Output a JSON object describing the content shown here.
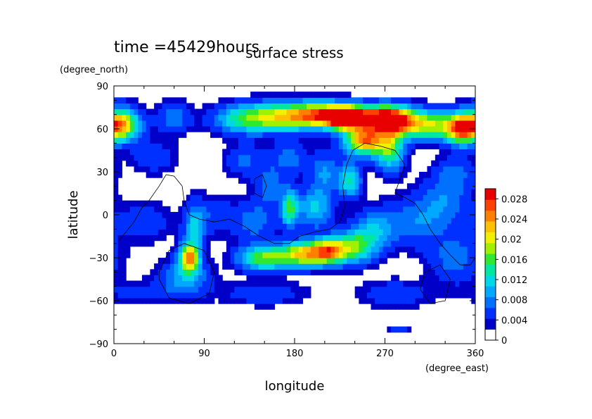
{
  "chart_data": {
    "type": "heatmap",
    "title": "surface stress",
    "time_label": "time =45429hours",
    "xlabel": "longitude",
    "ylabel": "latitude",
    "x_unit": "(degree_east)",
    "y_unit": "(degree_north)",
    "xlim": [
      0,
      360
    ],
    "ylim": [
      -90,
      90
    ],
    "x_ticks": [
      "0",
      "90",
      "180",
      "270",
      "360"
    ],
    "x_tick_values": [
      0,
      90,
      180,
      270,
      360
    ],
    "y_ticks": [
      "90",
      "60",
      "30",
      "0",
      "−30",
      "−60",
      "−90"
    ],
    "y_tick_values": [
      90,
      60,
      30,
      0,
      -30,
      -60,
      -90
    ],
    "colorbar": {
      "ticks": [
        "0.028",
        "0.024",
        "0.02",
        "0.016",
        "0.012",
        "0.008",
        "0.004",
        "0"
      ],
      "tick_values": [
        0.028,
        0.024,
        0.02,
        0.016,
        0.012,
        0.008,
        0.004,
        0
      ],
      "range": [
        0,
        0.03
      ],
      "colors": [
        "#ffffff",
        "#0000c8",
        "#0030ff",
        "#0070ff",
        "#00a8ff",
        "#00d8e8",
        "#00e8a0",
        "#30e830",
        "#a0f000",
        "#f0f000",
        "#ffc000",
        "#ff8000",
        "#ff4000",
        "#e80000"
      ]
    },
    "grid": false,
    "features": [
      {
        "lon": 5,
        "lat": 63,
        "value": 0.024,
        "sx": 14,
        "sy": 8
      },
      {
        "lon": 60,
        "lat": 68,
        "value": 0.006,
        "sx": 12,
        "sy": 8
      },
      {
        "lon": 130,
        "lat": 67,
        "value": 0.012,
        "sx": 22,
        "sy": 7
      },
      {
        "lon": 170,
        "lat": 69,
        "value": 0.016,
        "sx": 24,
        "sy": 7
      },
      {
        "lon": 210,
        "lat": 70,
        "value": 0.022,
        "sx": 22,
        "sy": 6
      },
      {
        "lon": 230,
        "lat": 68,
        "value": 0.026,
        "sx": 12,
        "sy": 5
      },
      {
        "lon": 260,
        "lat": 68,
        "value": 0.024,
        "sx": 20,
        "sy": 6
      },
      {
        "lon": 280,
        "lat": 65,
        "value": 0.022,
        "sx": 14,
        "sy": 7
      },
      {
        "lon": 315,
        "lat": 63,
        "value": 0.018,
        "sx": 18,
        "sy": 7
      },
      {
        "lon": 345,
        "lat": 60,
        "value": 0.02,
        "sx": 10,
        "sy": 7
      },
      {
        "lon": 250,
        "lat": 52,
        "value": 0.024,
        "sx": 14,
        "sy": 7
      },
      {
        "lon": 275,
        "lat": 45,
        "value": 0.014,
        "sx": 10,
        "sy": 10
      },
      {
        "lon": 235,
        "lat": 24,
        "value": 0.012,
        "sx": 8,
        "sy": 8
      },
      {
        "lon": 155,
        "lat": 20,
        "value": 0.006,
        "sx": 10,
        "sy": 10
      },
      {
        "lon": 210,
        "lat": 30,
        "value": 0.007,
        "sx": 10,
        "sy": 10
      },
      {
        "lon": 200,
        "lat": 5,
        "value": 0.01,
        "sx": 12,
        "sy": 10
      },
      {
        "lon": 175,
        "lat": 5,
        "value": 0.014,
        "sx": 6,
        "sy": 9
      },
      {
        "lon": 140,
        "lat": -5,
        "value": 0.006,
        "sx": 14,
        "sy": 10
      },
      {
        "lon": 100,
        "lat": 0,
        "value": 0.004,
        "sx": 16,
        "sy": 10
      },
      {
        "lon": 80,
        "lat": -10,
        "value": 0.009,
        "sx": 7,
        "sy": 12
      },
      {
        "lon": 75,
        "lat": -30,
        "value": 0.022,
        "sx": 7,
        "sy": 7
      },
      {
        "lon": 70,
        "lat": -45,
        "value": 0.008,
        "sx": 18,
        "sy": 9
      },
      {
        "lon": 150,
        "lat": -30,
        "value": 0.016,
        "sx": 18,
        "sy": 6
      },
      {
        "lon": 190,
        "lat": -27,
        "value": 0.02,
        "sx": 16,
        "sy": 6
      },
      {
        "lon": 215,
        "lat": -25,
        "value": 0.02,
        "sx": 12,
        "sy": 6
      },
      {
        "lon": 240,
        "lat": -22,
        "value": 0.014,
        "sx": 14,
        "sy": 8
      },
      {
        "lon": 260,
        "lat": -10,
        "value": 0.008,
        "sx": 14,
        "sy": 10
      },
      {
        "lon": 300,
        "lat": -5,
        "value": 0.006,
        "sx": 20,
        "sy": 12
      },
      {
        "lon": 330,
        "lat": 10,
        "value": 0.006,
        "sx": 18,
        "sy": 12
      },
      {
        "lon": 340,
        "lat": -30,
        "value": 0.006,
        "sx": 18,
        "sy": 12
      },
      {
        "lon": 30,
        "lat": -5,
        "value": 0.004,
        "sx": 20,
        "sy": 10
      },
      {
        "lon": 20,
        "lat": -55,
        "value": 0.003,
        "sx": 20,
        "sy": 6
      },
      {
        "lon": 150,
        "lat": -55,
        "value": 0.004,
        "sx": 30,
        "sy": 6
      },
      {
        "lon": 280,
        "lat": -55,
        "value": 0.004,
        "sx": 26,
        "sy": 7
      },
      {
        "lon": 40,
        "lat": 40,
        "value": 0.004,
        "sx": 16,
        "sy": 8
      },
      {
        "lon": 130,
        "lat": 38,
        "value": 0.005,
        "sx": 14,
        "sy": 8
      },
      {
        "lon": 175,
        "lat": 40,
        "value": 0.006,
        "sx": 12,
        "sy": 8
      },
      {
        "lon": 340,
        "lat": 30,
        "value": 0.005,
        "sx": 14,
        "sy": 8
      },
      {
        "lon": 285,
        "lat": -80,
        "value": 0.004,
        "sx": 8,
        "sy": 2
      }
    ],
    "coastlines": [
      [
        [
          5,
          -18
        ],
        [
          20,
          -5
        ],
        [
          28,
          5
        ],
        [
          35,
          10
        ],
        [
          45,
          20
        ],
        [
          52,
          28
        ],
        [
          60,
          27
        ],
        [
          68,
          20
        ],
        [
          70,
          10
        ],
        [
          75,
          0
        ],
        [
          85,
          -3
        ],
        [
          100,
          -5
        ],
        [
          115,
          -3
        ],
        [
          130,
          -8
        ],
        [
          145,
          -15
        ],
        [
          160,
          -20
        ],
        [
          175,
          -20
        ],
        [
          185,
          -15
        ],
        [
          200,
          -12
        ],
        [
          215,
          -10
        ],
        [
          225,
          -5
        ],
        [
          230,
          5
        ],
        [
          228,
          20
        ],
        [
          232,
          35
        ],
        [
          238,
          45
        ],
        [
          250,
          50
        ],
        [
          265,
          48
        ],
        [
          280,
          45
        ],
        [
          290,
          35
        ],
        [
          285,
          25
        ],
        [
          280,
          15
        ],
        [
          290,
          12
        ],
        [
          300,
          8
        ],
        [
          308,
          0
        ],
        [
          315,
          -10
        ],
        [
          325,
          -20
        ],
        [
          335,
          -28
        ],
        [
          345,
          -35
        ],
        [
          355,
          -35
        ],
        [
          360,
          -30
        ]
      ],
      [
        [
          45,
          -40
        ],
        [
          55,
          -25
        ],
        [
          70,
          -20
        ],
        [
          90,
          -25
        ],
        [
          100,
          -40
        ],
        [
          95,
          -55
        ],
        [
          75,
          -62
        ],
        [
          55,
          -58
        ],
        [
          45,
          -45
        ],
        [
          45,
          -40
        ]
      ],
      [
        [
          140,
          25
        ],
        [
          148,
          28
        ],
        [
          152,
          20
        ],
        [
          148,
          12
        ],
        [
          140,
          15
        ],
        [
          140,
          25
        ]
      ],
      [
        [
          310,
          -40
        ],
        [
          325,
          -35
        ],
        [
          335,
          -45
        ],
        [
          330,
          -60
        ],
        [
          315,
          -62
        ],
        [
          305,
          -52
        ],
        [
          310,
          -40
        ]
      ]
    ]
  }
}
